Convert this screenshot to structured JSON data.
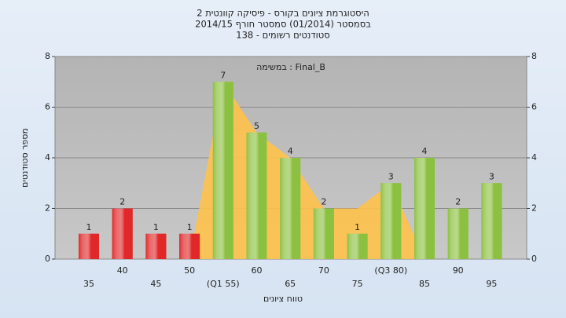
{
  "chart_data": {
    "type": "bar",
    "title": [
      "היסטוגרמת ציונים בקורס - פיסיקה קוונטית 2",
      "בסמסטר  (01/2014)  סמסטר חורף 2014/15",
      "סטודנטים רשומים - 138"
    ],
    "annotation": "במשימה : Final_B",
    "x_label": "טווח ציונים",
    "y_label": "מספר סטודנטים",
    "categories": [
      "35",
      "40",
      "45",
      "50",
      "(Q1 55)",
      "60",
      "65",
      "70",
      "75",
      "(Q3 80)",
      "85",
      "90",
      "95"
    ],
    "values": [
      1,
      2,
      1,
      1,
      7,
      5,
      4,
      2,
      1,
      3,
      4,
      2,
      3
    ],
    "colors": [
      "#e02828",
      "#e02828",
      "#e02828",
      "#e02828",
      "#8cc040",
      "#8cc040",
      "#8cc040",
      "#8cc040",
      "#8cc040",
      "#8cc040",
      "#8cc040",
      "#8cc040",
      "#8cc040"
    ],
    "area": {
      "color": "#ffc24a",
      "values": [
        null,
        null,
        null,
        0,
        7,
        5,
        4,
        2,
        2,
        3,
        0,
        null,
        null
      ]
    },
    "ylim": [
      0,
      8
    ],
    "yticks": [
      0,
      2,
      4,
      6,
      8
    ],
    "y2lim": [
      0,
      8
    ],
    "y2ticks": [
      0,
      2,
      4,
      6,
      8
    ],
    "grid": true
  }
}
